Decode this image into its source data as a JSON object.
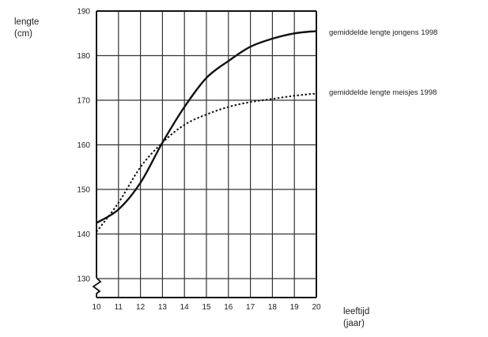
{
  "chart_data": {
    "type": "line",
    "ylabel_lines": [
      "lengte",
      "(cm)"
    ],
    "xlabel_lines": [
      "leeftijd",
      "(jaar)"
    ],
    "x": [
      10,
      11,
      12,
      13,
      14,
      15,
      16,
      17,
      18,
      19,
      20
    ],
    "xlim": [
      10,
      20
    ],
    "ylim": [
      125,
      190
    ],
    "x_ticks": [
      "10",
      "11",
      "12",
      "13",
      "14",
      "15",
      "16",
      "17",
      "18",
      "19",
      "20"
    ],
    "y_ticks": [
      130,
      140,
      150,
      160,
      170,
      180,
      190
    ],
    "y_tick_labels": [
      "130",
      "140",
      "150",
      "160",
      "170",
      "180",
      "190"
    ],
    "axis_break": true,
    "grid": true,
    "series": [
      {
        "name": "gemiddelde lengte jongens 1998",
        "style": "solid",
        "color": "#111111",
        "values": [
          142.5,
          145.5,
          151.5,
          160.5,
          168.5,
          175,
          178.8,
          182,
          183.8,
          185,
          185.5
        ]
      },
      {
        "name": "gemiddelde lengte meisjes 1998",
        "style": "dotted",
        "color": "#111111",
        "values": [
          140.5,
          147,
          155,
          160.5,
          164.5,
          166.8,
          168.5,
          169.6,
          170.3,
          171,
          171.5
        ]
      }
    ]
  }
}
